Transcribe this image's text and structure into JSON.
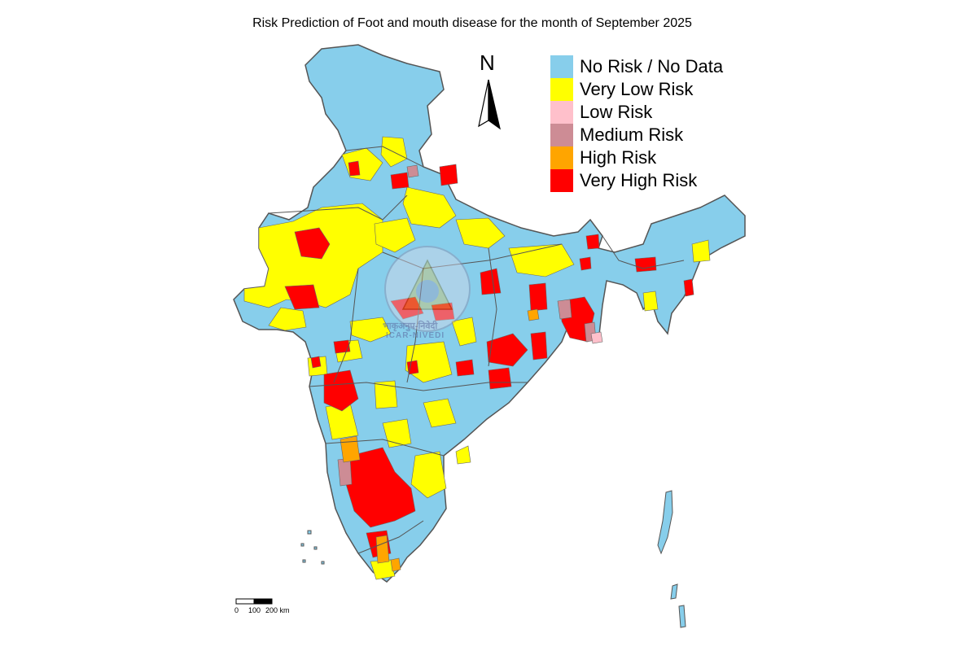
{
  "map": {
    "title": "Risk Prediction of Foot and mouth disease for the month of September 2025",
    "north_arrow": "N",
    "scale_bar": {
      "labels": [
        "0",
        "100",
        "200 km"
      ]
    },
    "watermark": {
      "line1": "भाकृअनुप-निवेदी",
      "line2": "ICAR-NIVEDI"
    },
    "legend": [
      {
        "label": "No Risk / No Data",
        "color": "#87CEEB"
      },
      {
        "label": "Very Low Risk",
        "color": "#FFFF00"
      },
      {
        "label": "Low Risk",
        "color": "#FFC0CB"
      },
      {
        "label": "Medium Risk",
        "color": "#CD8C95"
      },
      {
        "label": "High Risk",
        "color": "#FFA500"
      },
      {
        "label": "Very High Risk",
        "color": "#FF0000"
      }
    ],
    "colors": {
      "border": "#555555",
      "background": "#ffffff"
    }
  }
}
